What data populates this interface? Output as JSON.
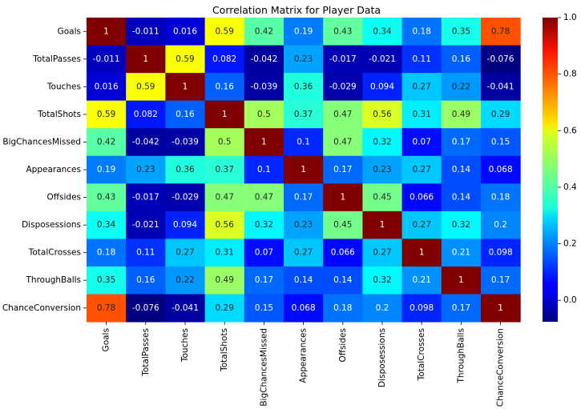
{
  "chart_data": {
    "type": "heatmap",
    "title": "Correlation Matrix for Player Data",
    "colormap": "jet",
    "vmin": -0.076,
    "vmax": 1,
    "labels": [
      "Goals",
      "TotalPasses",
      "Touches",
      "TotalShots",
      "BigChancesMissed",
      "Appearances",
      "Offsides",
      "Disposessions",
      "TotalCrosses",
      "ThroughBalls",
      "ChanceConversion"
    ],
    "values": [
      [
        1,
        -0.011,
        0.016,
        0.59,
        0.42,
        0.19,
        0.43,
        0.34,
        0.18,
        0.35,
        0.78
      ],
      [
        -0.011,
        1,
        0.59,
        0.082,
        -0.042,
        0.23,
        -0.017,
        -0.021,
        0.11,
        0.16,
        -0.076
      ],
      [
        0.016,
        0.59,
        1,
        0.16,
        -0.039,
        0.36,
        -0.029,
        0.094,
        0.27,
        0.22,
        -0.041
      ],
      [
        0.59,
        0.082,
        0.16,
        1,
        0.5,
        0.37,
        0.47,
        0.56,
        0.31,
        0.49,
        0.29
      ],
      [
        0.42,
        -0.042,
        -0.039,
        0.5,
        1,
        0.1,
        0.47,
        0.32,
        0.07,
        0.17,
        0.15
      ],
      [
        0.19,
        0.23,
        0.36,
        0.37,
        0.1,
        1,
        0.17,
        0.23,
        0.27,
        0.14,
        0.068
      ],
      [
        0.43,
        -0.017,
        -0.029,
        0.47,
        0.47,
        0.17,
        1,
        0.45,
        0.066,
        0.14,
        0.18
      ],
      [
        0.34,
        -0.021,
        0.094,
        0.56,
        0.32,
        0.23,
        0.45,
        1,
        0.27,
        0.32,
        0.2
      ],
      [
        0.18,
        0.11,
        0.27,
        0.31,
        0.07,
        0.27,
        0.066,
        0.27,
        1,
        0.21,
        0.098
      ],
      [
        0.35,
        0.16,
        0.22,
        0.49,
        0.17,
        0.14,
        0.14,
        0.32,
        0.21,
        1,
        0.17
      ],
      [
        0.78,
        -0.076,
        -0.041,
        0.29,
        0.15,
        0.068,
        0.18,
        0.2,
        0.098,
        0.17,
        1
      ]
    ],
    "colorbar_ticks": [
      0.0,
      0.2,
      0.4,
      0.6,
      0.8,
      1.0
    ],
    "colorbar_tick_labels": [
      "0.0",
      "0.2",
      "0.4",
      "0.6",
      "0.8",
      "1.0"
    ]
  }
}
